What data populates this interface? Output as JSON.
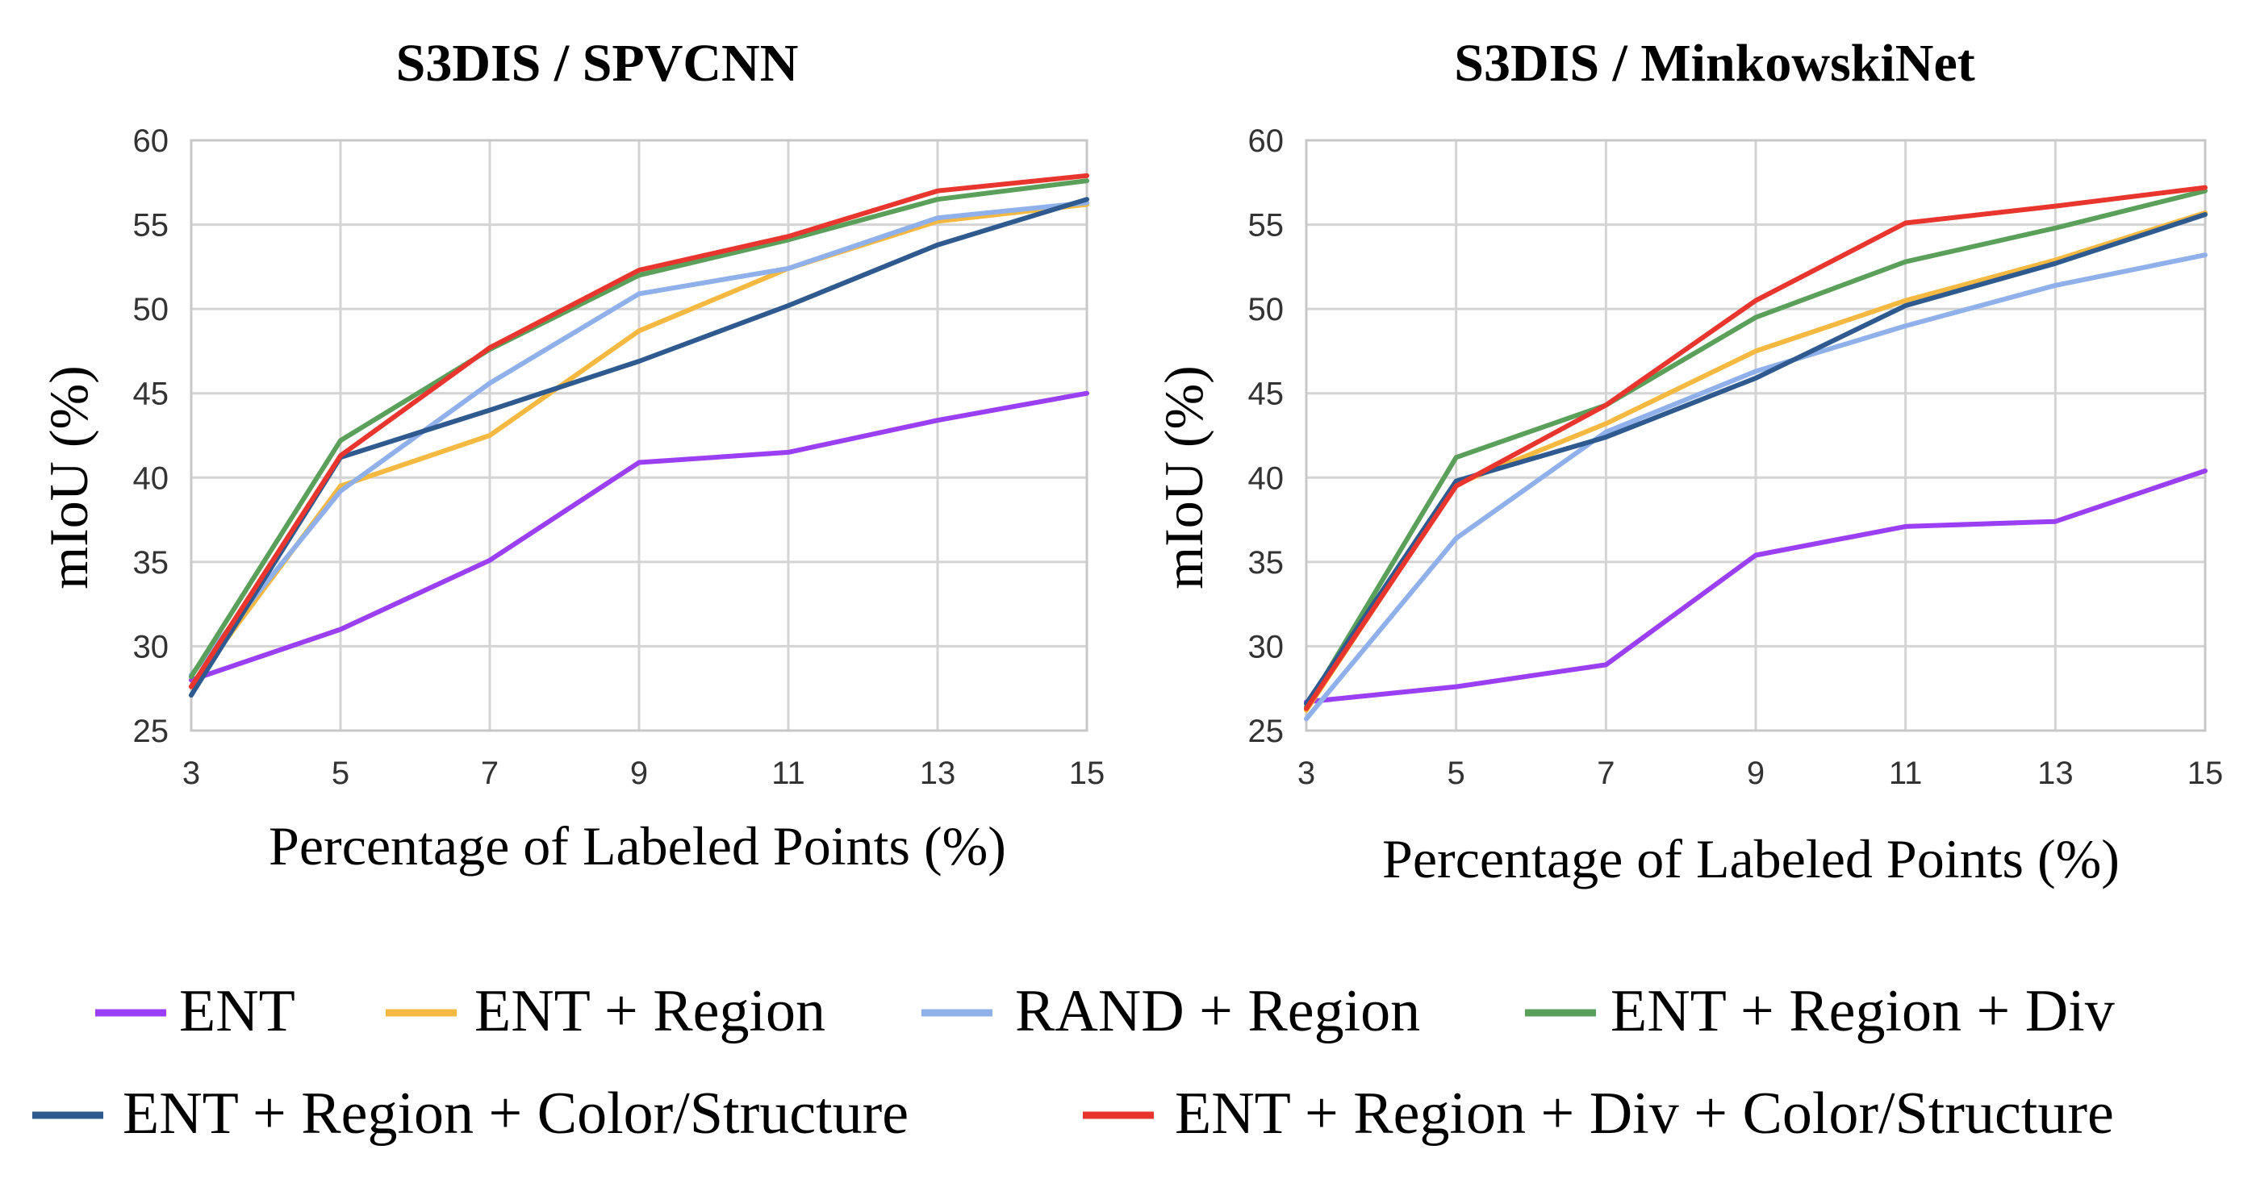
{
  "chart_data": [
    {
      "type": "line",
      "title": "S3DIS / SPVCNN",
      "xlabel": "Percentage of Labeled Points (%)",
      "ylabel": "mIoU (%)",
      "x": [
        3,
        5,
        7,
        9,
        11,
        13,
        15
      ],
      "xticks": [
        "3",
        "5",
        "7",
        "9",
        "11",
        "13",
        "15"
      ],
      "yticks": [
        "25",
        "30",
        "35",
        "40",
        "45",
        "50",
        "55",
        "60"
      ],
      "ylim": [
        25,
        60
      ],
      "xlim": [
        3,
        15
      ],
      "grid": true,
      "series": [
        {
          "name": "ENT",
          "color": "#9b3ff5",
          "values": [
            28.0,
            31.0,
            35.1,
            40.9,
            41.5,
            43.4,
            45.0
          ]
        },
        {
          "name": "ENT + Region",
          "color": "#f5b942",
          "values": [
            27.6,
            39.5,
            42.5,
            48.7,
            52.4,
            55.2,
            56.2
          ]
        },
        {
          "name": "RAND + Region",
          "color": "#8fb0ea",
          "values": [
            28.3,
            39.2,
            45.6,
            50.9,
            52.4,
            55.4,
            56.3
          ]
        },
        {
          "name": "ENT + Region + Div",
          "color": "#5aa05a",
          "values": [
            28.2,
            42.2,
            47.6,
            52.0,
            54.1,
            56.5,
            57.6
          ]
        },
        {
          "name": "ENT + Region + Color/Structure",
          "color": "#2f5a8f",
          "values": [
            27.1,
            41.2,
            44.0,
            46.9,
            50.2,
            53.8,
            56.5
          ]
        },
        {
          "name": "ENT + Region + Div + Color/Structure",
          "color": "#e8352e",
          "values": [
            27.6,
            41.3,
            47.7,
            52.3,
            54.3,
            57.0,
            57.9
          ]
        }
      ]
    },
    {
      "type": "line",
      "title": "S3DIS / MinkowskiNet",
      "xlabel": "Percentage of Labeled Points (%)",
      "ylabel": "mIoU (%)",
      "x": [
        3,
        5,
        7,
        9,
        11,
        13,
        15
      ],
      "xticks": [
        "3",
        "5",
        "7",
        "9",
        "11",
        "13",
        "15"
      ],
      "yticks": [
        "25",
        "30",
        "35",
        "40",
        "45",
        "50",
        "55",
        "60"
      ],
      "ylim": [
        25,
        60
      ],
      "xlim": [
        3,
        15
      ],
      "grid": true,
      "series": [
        {
          "name": "ENT",
          "color": "#9b3ff5",
          "values": [
            26.7,
            27.6,
            28.9,
            35.4,
            37.1,
            37.4,
            40.4
          ]
        },
        {
          "name": "ENT + Region",
          "color": "#f5b942",
          "values": [
            26.2,
            39.6,
            43.2,
            47.5,
            50.5,
            52.9,
            55.7
          ]
        },
        {
          "name": "RAND + Region",
          "color": "#8fb0ea",
          "values": [
            25.7,
            36.4,
            42.7,
            46.3,
            49.0,
            51.4,
            53.2
          ]
        },
        {
          "name": "ENT + Region + Div",
          "color": "#5aa05a",
          "values": [
            26.4,
            41.2,
            44.3,
            49.5,
            52.8,
            54.8,
            57.0
          ]
        },
        {
          "name": "ENT + Region + Color/Structure",
          "color": "#2f5a8f",
          "values": [
            26.6,
            39.8,
            42.4,
            45.9,
            50.2,
            52.7,
            55.6
          ]
        },
        {
          "name": "ENT + Region + Div + Color/Structure",
          "color": "#e8352e",
          "values": [
            26.3,
            39.5,
            44.3,
            50.5,
            55.1,
            56.1,
            57.2
          ]
        }
      ]
    }
  ],
  "legend": {
    "rows": [
      [
        {
          "name": "ENT",
          "color": "#9b3ff5"
        },
        {
          "name": "ENT + Region",
          "color": "#f5b942"
        },
        {
          "name": "RAND + Region",
          "color": "#8fb0ea"
        },
        {
          "name": "ENT + Region + Div",
          "color": "#5aa05a"
        }
      ],
      [
        {
          "name": "ENT + Region + Color/Structure",
          "color": "#2f5a8f"
        },
        {
          "name": "ENT + Region + Div + Color/Structure",
          "color": "#e8352e"
        }
      ]
    ],
    "placement": "bottom"
  }
}
